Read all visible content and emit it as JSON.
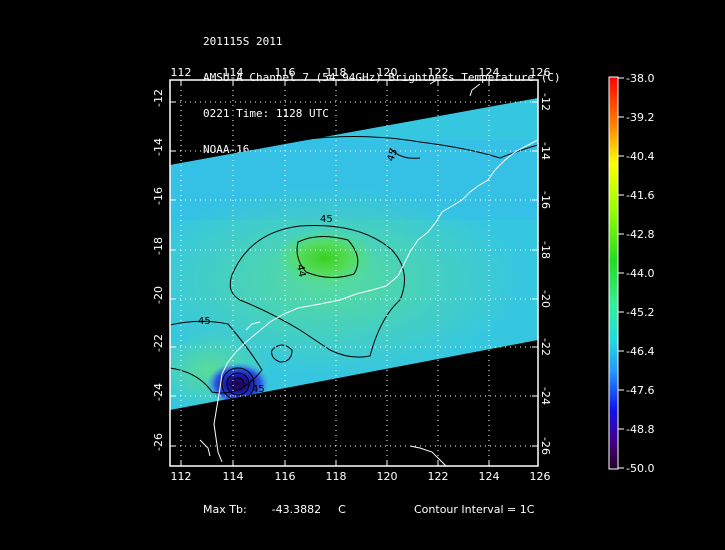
{
  "header": {
    "line1": "201115S 2011",
    "line2": "AMSU-A Channel 7 (54.94GHz) Brightness Temperature (C)",
    "line3": "0221 Time: 1128 UTC",
    "line4": "NOAA-16"
  },
  "map": {
    "lon_ticks": [
      "112",
      "114",
      "116",
      "118",
      "120",
      "122",
      "124",
      "126"
    ],
    "lat_ticks": [
      "-12",
      "-14",
      "-16",
      "-18",
      "-20",
      "-22",
      "-24",
      "-26"
    ],
    "contour_labels": [
      "45",
      "45",
      "44",
      "45",
      "45",
      "45"
    ]
  },
  "colorbar": {
    "labels": [
      "-38.0",
      "-39.2",
      "-40.4",
      "-41.6",
      "-42.8",
      "-44.0",
      "-45.2",
      "-46.4",
      "-47.6",
      "-48.8",
      "-50.0"
    ]
  },
  "footer": {
    "max_tb_label": "Max Tb:",
    "max_tb_value": "-43.3882",
    "max_tb_unit": "C",
    "contour_interval": "Contour Interval = 1C"
  },
  "colors": {
    "background": "#000000",
    "swath_base": "#33ccdd",
    "warm_center": "#40dd30",
    "cold_core": "#200050"
  }
}
